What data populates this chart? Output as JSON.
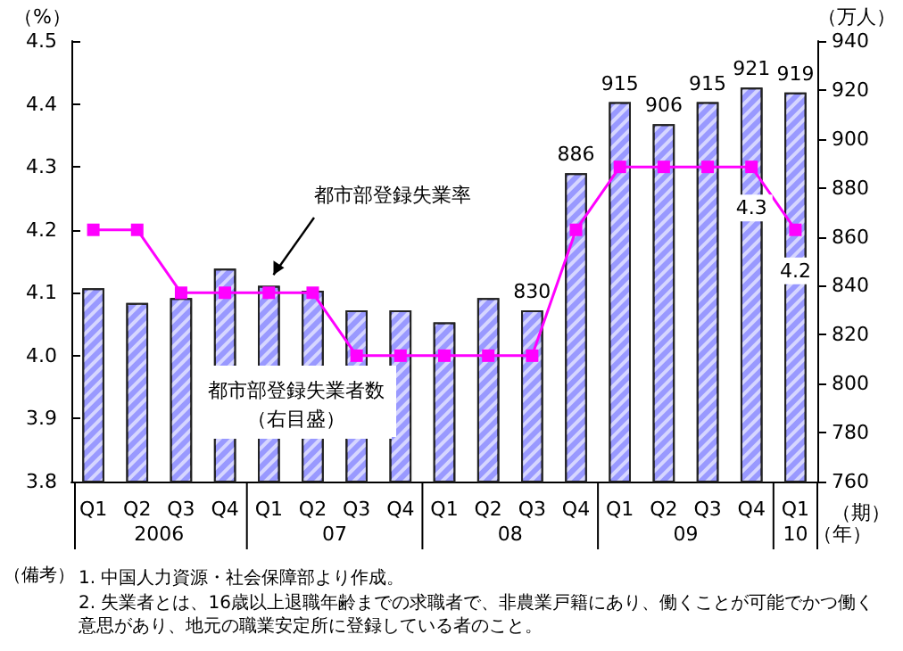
{
  "chart_data": {
    "type": "bar",
    "categories": [
      "Q1",
      "Q2",
      "Q3",
      "Q4",
      "Q1",
      "Q2",
      "Q3",
      "Q4",
      "Q1",
      "Q2",
      "Q3",
      "Q4",
      "Q1",
      "Q2",
      "Q3",
      "Q4",
      "Q1"
    ],
    "series": [
      {
        "name": "都市部登録失業者数（右目盛）",
        "axis": "y2",
        "color": "#9999ff",
        "values": [
          839,
          833,
          835,
          847,
          840,
          838,
          830,
          830,
          825,
          835,
          830,
          886,
          915,
          906,
          915,
          921,
          919
        ],
        "value_labels": [
          null,
          null,
          null,
          null,
          null,
          null,
          null,
          null,
          null,
          null,
          "830",
          "886",
          "915",
          "906",
          "915",
          "921",
          "919"
        ]
      },
      {
        "name": "都市部登録失業率",
        "type": "line",
        "color": "#ff00ff",
        "values": [
          4.2,
          4.2,
          4.1,
          4.1,
          4.1,
          4.1,
          4.0,
          4.0,
          4.0,
          4.0,
          4.0,
          4.2,
          4.3,
          4.3,
          4.3,
          4.3,
          4.2
        ],
        "value_labels": [
          null,
          null,
          null,
          null,
          null,
          null,
          null,
          null,
          null,
          null,
          null,
          null,
          null,
          null,
          null,
          "4.3",
          "4.2"
        ]
      }
    ],
    "ylabel": "（%）",
    "y2label": "（万人）",
    "xlabel": "（期）",
    "ylim": [
      3.8,
      4.5
    ],
    "yticks": [
      3.8,
      3.9,
      {
        "value": 4,
        "label": "4.0"
      },
      4.1,
      4.2,
      4.3,
      4.4,
      4.5
    ],
    "y2lim": [
      760,
      940
    ],
    "y2ticks": [
      760,
      780,
      800,
      820,
      840,
      860,
      880,
      900,
      920,
      940
    ],
    "marker": "square",
    "grid": false,
    "legend": false,
    "annotations": [
      "2006",
      "07",
      "08",
      "09",
      "10",
      "（年）",
      "（備考）",
      "1. 中国人力資源・社会保障部より作成。",
      "2. 失業者とは、16歳以上退職年齢までの求職者で、非農業戸籍にあり、働くことが可能でかつ働く意思があり、地元の職業安定所に登録している者のこと。"
    ]
  }
}
